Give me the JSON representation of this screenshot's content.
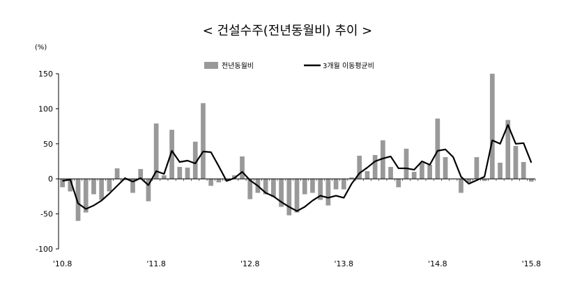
{
  "chart_data": {
    "type": "bar+line",
    "title": "< 건설수주(전년동월비) 추이 >",
    "unit": "(%)",
    "ylim": [
      -100,
      150
    ],
    "yticks": [
      -100,
      -50,
      0,
      50,
      100,
      150
    ],
    "x_tick_labels": [
      {
        "index": 0,
        "label": "'10.8"
      },
      {
        "index": 12,
        "label": "'11.8"
      },
      {
        "index": 24,
        "label": "'12.8"
      },
      {
        "index": 36,
        "label": "'13.8"
      },
      {
        "index": 48,
        "label": "'14.8"
      },
      {
        "index": 60,
        "label": "'15.8"
      }
    ],
    "legend": {
      "position": "top-center",
      "bar_label": "전년동월비",
      "line_label": "3개월 이동평균비"
    },
    "series": [
      {
        "name": "전년동월비",
        "kind": "bar",
        "color": "#999999",
        "values": [
          -12,
          -18,
          -60,
          -48,
          -22,
          -30,
          -18,
          15,
          -2,
          -20,
          14,
          -32,
          79,
          5,
          70,
          17,
          16,
          53,
          108,
          -10,
          -5,
          -3,
          5,
          32,
          -29,
          -20,
          -22,
          -26,
          -40,
          -52,
          -48,
          -22,
          -20,
          -30,
          -38,
          -15,
          -15,
          2,
          33,
          11,
          34,
          55,
          17,
          -12,
          43,
          10,
          23,
          20,
          86,
          31,
          0,
          -20,
          -5,
          31,
          -3,
          150,
          23,
          84,
          47,
          24,
          -4
        ]
      },
      {
        "name": "3개월 이동평균비",
        "kind": "line",
        "color": "#000000",
        "values": [
          -3,
          -1,
          -35,
          -43,
          -38,
          -31,
          -21,
          -10,
          1,
          -4,
          1,
          -9,
          11,
          7,
          40,
          24,
          26,
          22,
          39,
          38,
          18,
          -3,
          1,
          10,
          -2,
          -10,
          -20,
          -25,
          -33,
          -40,
          -46,
          -40,
          -31,
          -24,
          -27,
          -24,
          -27,
          -7,
          8,
          16,
          25,
          29,
          32,
          15,
          15,
          13,
          25,
          20,
          40,
          42,
          31,
          3,
          -7,
          -2,
          3,
          55,
          50,
          77,
          50,
          51,
          23
        ]
      }
    ]
  }
}
